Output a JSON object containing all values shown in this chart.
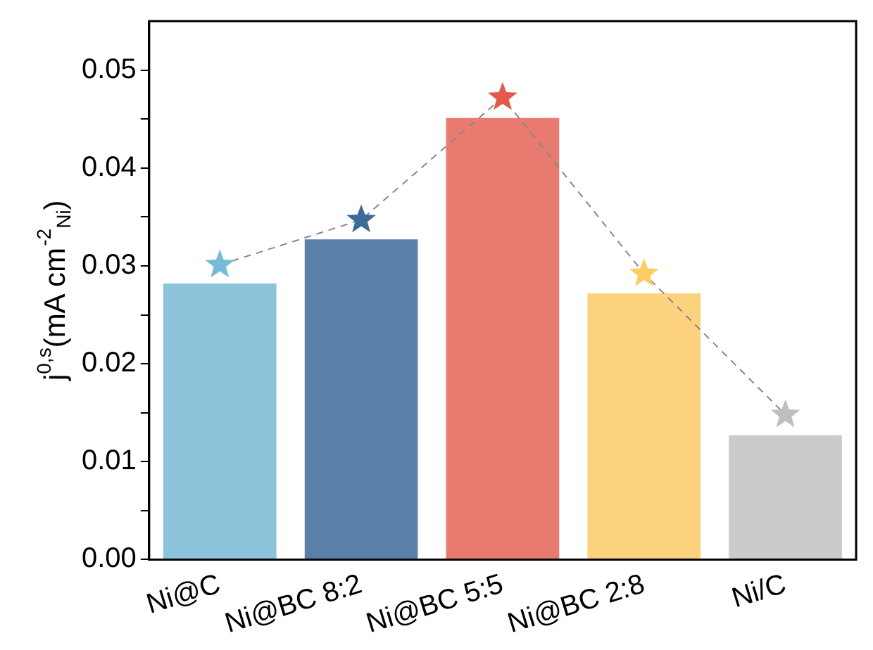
{
  "chart_data": {
    "type": "bar",
    "ylabel": "j$^{0,s}$(mA cm$^{-2}$$_{Ni}$)",
    "categories": [
      "Ni@C",
      "Ni@BC 8:2",
      "Ni@BC 5:5",
      "Ni@BC 2:8",
      "Ni/C"
    ],
    "series": [
      {
        "colors": [
          "#8cc4dc",
          "#5a80aa",
          "#e97a70",
          "#fcd27e",
          "#cccacb"
        ],
        "values": [
          0.0282,
          0.0327,
          0.0451,
          0.0272,
          0.0127
        ]
      },
      {
        "type": "line",
        "color": "#888888",
        "colors": [
          "#76bcd6",
          "#3d6a98",
          "#e45a4a",
          "#fdcb64",
          "#c2bdc0"
        ],
        "marker": "star",
        "line_style": "dashed",
        "values": [
          0.0301,
          0.0347,
          0.0472,
          0.0292,
          0.0148
        ]
      }
    ],
    "ylim": [
      0,
      0.055
    ],
    "yticks": [
      {
        "value": 0,
        "label": "0.00"
      },
      {
        "value": 0.005,
        "label": null
      },
      0.01,
      {
        "value": 0.015,
        "label": null
      },
      0.02,
      {
        "value": 0.025,
        "label": null
      },
      0.03,
      {
        "value": 0.035,
        "label": null
      },
      0.04,
      {
        "value": 0.045,
        "label": null
      },
      0.05
    ],
    "grid": false,
    "legend": false
  }
}
